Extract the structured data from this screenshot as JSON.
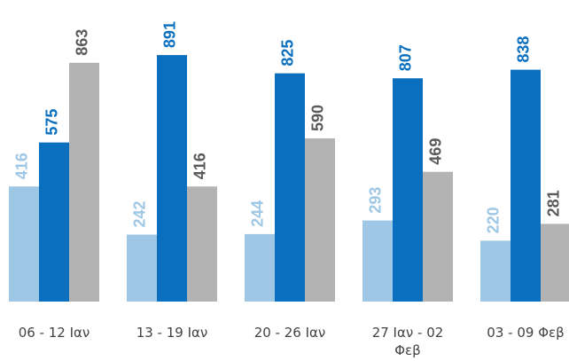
{
  "chart_data": {
    "type": "bar",
    "categories": [
      "06 - 12 Ιαν",
      "13 - 19 Ιαν",
      "20 - 26 Ιαν",
      "27 Ιαν - 02 Φεβ",
      "03 - 09 Φεβ"
    ],
    "series": [
      {
        "color": "#9ec7e5",
        "label_color": "#9ec7e5",
        "values": [
          416,
          242,
          244,
          293,
          220
        ]
      },
      {
        "color": "#0a6fbe",
        "label_color": "#0a6fbe",
        "values": [
          575,
          891,
          825,
          807,
          838
        ]
      },
      {
        "color": "#b3b3b3",
        "label_color": "#5a5a5a",
        "values": [
          863,
          416,
          590,
          469,
          281
        ]
      }
    ],
    "ylim": [
      0,
      1090
    ]
  }
}
